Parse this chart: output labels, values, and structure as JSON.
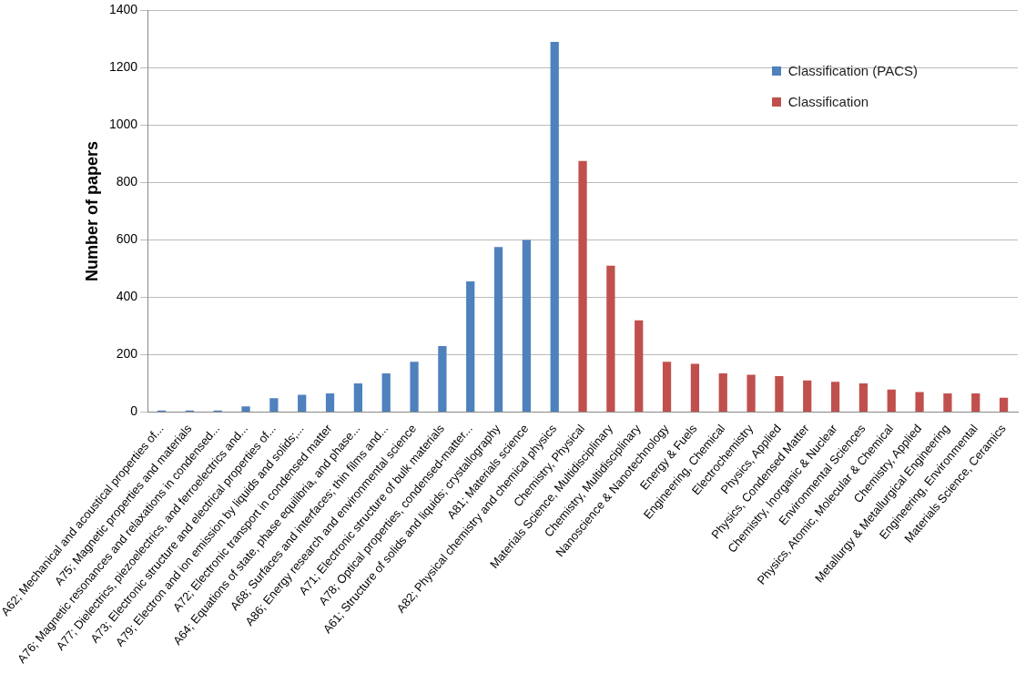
{
  "chart_data": {
    "type": "bar",
    "ylabel": "Number of papers",
    "categories": [
      "A62; Mechanical and acoustical properties of...",
      "A75; Magnetic properties and materials",
      "A76; Magnetic resonances and relaxations in condensed...",
      "A77; Dielectrics, piezoelectrics, and ferroelectrics and...",
      "A73; Electronic structure and electrical properties of...",
      "A79; Electron and ion emission by liquids and solids;...",
      "A72; Electronic transport in condensed matter",
      "A64; Equations of state, phase equilibria, and phase...",
      "A68; Surfaces and interfaces; thin films and...",
      "A86; Energy research and environmental science",
      "A71; Electronic structure of bulk materials",
      "A78; Optical properties, condensed-matter...",
      "A61; Structure of solids and liquids; crystallography",
      "A81; Materials science",
      "A82; Physical chemistry and chemical physics",
      "Chemistry, Physical",
      "Materials Science, Multidisciplinary",
      "Chemistry, Multidisciplinary",
      "Nanoscience & Nanotechnology",
      "Energy & Fuels",
      "Engineering, Chemical",
      "Electrochemistry",
      "Physics, Applied",
      "Physics, Condensed Matter",
      "Chemistry, Inorganic & Nuclear",
      "Environmental Sciences",
      "Physics, Atomic, Molecular & Chemical",
      "Chemistry, Applied",
      "Metallurgy & Metallurgical Engineering",
      "Engineering, Environmental",
      "Materials Science, Ceramics"
    ],
    "series": [
      {
        "name": "Classification (PACS)",
        "color": "#4f81bd",
        "values": [
          5,
          5,
          5,
          20,
          48,
          60,
          65,
          100,
          135,
          175,
          230,
          455,
          575,
          600,
          1290,
          null,
          null,
          null,
          null,
          null,
          null,
          null,
          null,
          null,
          null,
          null,
          null,
          null,
          null,
          null,
          null
        ]
      },
      {
        "name": "Classification",
        "color": "#c0504d",
        "values": [
          null,
          null,
          null,
          null,
          null,
          null,
          null,
          null,
          null,
          null,
          null,
          null,
          null,
          null,
          null,
          875,
          510,
          320,
          175,
          168,
          135,
          130,
          125,
          110,
          105,
          100,
          78,
          70,
          65,
          65,
          50
        ]
      }
    ],
    "ylim": [
      0,
      1400
    ],
    "yticks": [
      0,
      200,
      400,
      600,
      800,
      1000,
      1200,
      1400
    ],
    "grid": "y",
    "legend": "top right"
  }
}
